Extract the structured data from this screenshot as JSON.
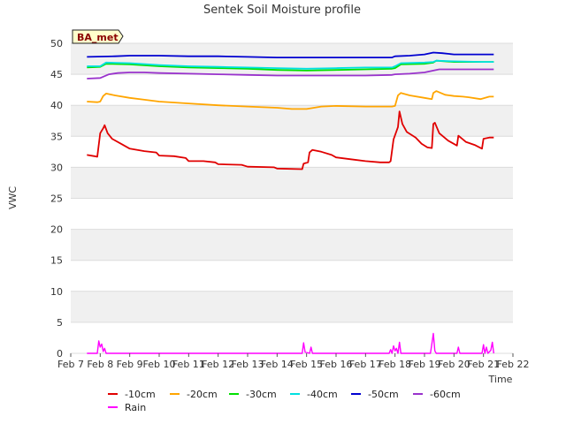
{
  "chart_data": {
    "type": "line",
    "title": "Sentek Soil Moisture profile",
    "xlabel": "Time",
    "ylabel": "VWC",
    "site_label": "BA_met",
    "xlim": [
      7,
      22
    ],
    "ylim": [
      0,
      50
    ],
    "x_ticks": [
      {
        "value": 7,
        "label": "Feb 7"
      },
      {
        "value": 8,
        "label": "Feb 8"
      },
      {
        "value": 9,
        "label": "Feb 9"
      },
      {
        "value": 10,
        "label": "Feb 10"
      },
      {
        "value": 11,
        "label": "Feb 11"
      },
      {
        "value": 12,
        "label": "Feb 12"
      },
      {
        "value": 13,
        "label": "Feb 13"
      },
      {
        "value": 14,
        "label": "Feb 14"
      },
      {
        "value": 15,
        "label": "Feb 15"
      },
      {
        "value": 16,
        "label": "Feb 16"
      },
      {
        "value": 17,
        "label": "Feb 17"
      },
      {
        "value": 18,
        "label": "Feb 18"
      },
      {
        "value": 19,
        "label": "Feb 19"
      },
      {
        "value": 20,
        "label": "Feb 20"
      },
      {
        "value": 21,
        "label": "Feb 21"
      },
      {
        "value": 22,
        "label": "Feb 22"
      }
    ],
    "y_ticks": [
      0,
      5,
      10,
      15,
      20,
      25,
      30,
      35,
      40,
      45,
      50
    ],
    "series": [
      {
        "name": "-10cm",
        "color": "#e00000",
        "points": [
          [
            7.55,
            32.0
          ],
          [
            7.8,
            31.8
          ],
          [
            7.9,
            31.7
          ],
          [
            8.0,
            35.5
          ],
          [
            8.1,
            36.3
          ],
          [
            8.15,
            36.8
          ],
          [
            8.25,
            35.5
          ],
          [
            8.4,
            34.6
          ],
          [
            8.7,
            33.8
          ],
          [
            9.0,
            33.0
          ],
          [
            9.5,
            32.6
          ],
          [
            9.9,
            32.4
          ],
          [
            10.0,
            31.9
          ],
          [
            10.5,
            31.8
          ],
          [
            10.9,
            31.5
          ],
          [
            11.0,
            31.0
          ],
          [
            11.5,
            31.0
          ],
          [
            11.9,
            30.8
          ],
          [
            12.0,
            30.5
          ],
          [
            12.8,
            30.4
          ],
          [
            13.0,
            30.1
          ],
          [
            13.9,
            30.0
          ],
          [
            14.0,
            29.8
          ],
          [
            14.85,
            29.7
          ],
          [
            14.9,
            30.6
          ],
          [
            15.05,
            30.8
          ],
          [
            15.1,
            32.4
          ],
          [
            15.2,
            32.8
          ],
          [
            15.5,
            32.5
          ],
          [
            15.85,
            32.0
          ],
          [
            16.0,
            31.6
          ],
          [
            16.5,
            31.3
          ],
          [
            17.0,
            31.0
          ],
          [
            17.5,
            30.8
          ],
          [
            17.8,
            30.8
          ],
          [
            17.85,
            31.0
          ],
          [
            17.95,
            34.5
          ],
          [
            18.1,
            36.5
          ],
          [
            18.15,
            39.0
          ],
          [
            18.25,
            37.0
          ],
          [
            18.4,
            35.7
          ],
          [
            18.7,
            34.8
          ],
          [
            18.9,
            33.8
          ],
          [
            19.1,
            33.2
          ],
          [
            19.25,
            33.1
          ],
          [
            19.3,
            37.0
          ],
          [
            19.35,
            37.2
          ],
          [
            19.5,
            35.5
          ],
          [
            19.8,
            34.3
          ],
          [
            20.1,
            33.5
          ],
          [
            20.15,
            35.1
          ],
          [
            20.4,
            34.1
          ],
          [
            20.7,
            33.6
          ],
          [
            20.95,
            33.0
          ],
          [
            21.0,
            34.6
          ],
          [
            21.2,
            34.8
          ],
          [
            21.35,
            34.8
          ]
        ]
      },
      {
        "name": "-20cm",
        "color": "#ffa500",
        "points": [
          [
            7.55,
            40.6
          ],
          [
            7.9,
            40.5
          ],
          [
            8.0,
            40.6
          ],
          [
            8.1,
            41.5
          ],
          [
            8.2,
            41.9
          ],
          [
            8.5,
            41.6
          ],
          [
            9.0,
            41.2
          ],
          [
            9.5,
            40.9
          ],
          [
            10.0,
            40.6
          ],
          [
            11.0,
            40.3
          ],
          [
            12.0,
            40.0
          ],
          [
            13.0,
            39.8
          ],
          [
            14.0,
            39.6
          ],
          [
            14.5,
            39.4
          ],
          [
            15.0,
            39.4
          ],
          [
            15.5,
            39.8
          ],
          [
            16.0,
            39.9
          ],
          [
            17.0,
            39.8
          ],
          [
            17.9,
            39.8
          ],
          [
            18.0,
            39.9
          ],
          [
            18.1,
            41.6
          ],
          [
            18.2,
            42.0
          ],
          [
            18.5,
            41.6
          ],
          [
            19.0,
            41.2
          ],
          [
            19.25,
            41.0
          ],
          [
            19.3,
            42.0
          ],
          [
            19.4,
            42.3
          ],
          [
            19.7,
            41.7
          ],
          [
            20.0,
            41.5
          ],
          [
            20.3,
            41.4
          ],
          [
            20.5,
            41.3
          ],
          [
            20.9,
            41.0
          ],
          [
            21.2,
            41.4
          ],
          [
            21.35,
            41.4
          ]
        ]
      },
      {
        "name": "-30cm",
        "color": "#00e000",
        "points": [
          [
            7.55,
            46.1
          ],
          [
            8.0,
            46.2
          ],
          [
            8.2,
            46.7
          ],
          [
            9.0,
            46.6
          ],
          [
            10.0,
            46.3
          ],
          [
            11.0,
            46.1
          ],
          [
            12.0,
            46.0
          ],
          [
            13.0,
            45.9
          ],
          [
            14.0,
            45.7
          ],
          [
            15.0,
            45.6
          ],
          [
            16.0,
            45.7
          ],
          [
            17.0,
            45.8
          ],
          [
            17.9,
            45.9
          ],
          [
            18.0,
            46.0
          ],
          [
            18.2,
            46.6
          ],
          [
            19.0,
            46.7
          ],
          [
            19.3,
            46.9
          ],
          [
            19.4,
            47.2
          ],
          [
            20.0,
            47.0
          ],
          [
            21.0,
            47.0
          ],
          [
            21.35,
            47.0
          ]
        ]
      },
      {
        "name": "-40cm",
        "color": "#00e0e0",
        "points": [
          [
            7.55,
            46.3
          ],
          [
            8.0,
            46.3
          ],
          [
            8.2,
            46.9
          ],
          [
            9.0,
            46.8
          ],
          [
            10.0,
            46.5
          ],
          [
            11.0,
            46.3
          ],
          [
            12.0,
            46.2
          ],
          [
            13.0,
            46.1
          ],
          [
            14.0,
            46.0
          ],
          [
            15.0,
            45.9
          ],
          [
            16.0,
            46.0
          ],
          [
            17.0,
            46.1
          ],
          [
            17.9,
            46.1
          ],
          [
            18.0,
            46.3
          ],
          [
            18.2,
            46.8
          ],
          [
            19.0,
            46.9
          ],
          [
            19.3,
            47.0
          ],
          [
            19.4,
            47.2
          ],
          [
            20.0,
            47.1
          ],
          [
            21.0,
            47.0
          ],
          [
            21.35,
            47.0
          ]
        ]
      },
      {
        "name": "-50cm",
        "color": "#0000d0",
        "points": [
          [
            7.55,
            47.8
          ],
          [
            8.5,
            47.9
          ],
          [
            9.0,
            48.0
          ],
          [
            10.0,
            48.0
          ],
          [
            11.0,
            47.9
          ],
          [
            12.0,
            47.9
          ],
          [
            13.0,
            47.8
          ],
          [
            14.0,
            47.7
          ],
          [
            15.0,
            47.7
          ],
          [
            16.0,
            47.7
          ],
          [
            17.0,
            47.7
          ],
          [
            17.9,
            47.7
          ],
          [
            18.0,
            47.9
          ],
          [
            18.5,
            48.0
          ],
          [
            19.0,
            48.2
          ],
          [
            19.3,
            48.5
          ],
          [
            19.6,
            48.4
          ],
          [
            20.0,
            48.2
          ],
          [
            21.0,
            48.2
          ],
          [
            21.35,
            48.2
          ]
        ]
      },
      {
        "name": "-60cm",
        "color": "#9932cc",
        "points": [
          [
            7.55,
            44.3
          ],
          [
            8.0,
            44.4
          ],
          [
            8.3,
            45.0
          ],
          [
            8.6,
            45.2
          ],
          [
            9.0,
            45.3
          ],
          [
            9.5,
            45.3
          ],
          [
            10.0,
            45.2
          ],
          [
            11.0,
            45.1
          ],
          [
            12.0,
            45.0
          ],
          [
            13.0,
            44.9
          ],
          [
            14.0,
            44.8
          ],
          [
            15.0,
            44.8
          ],
          [
            16.0,
            44.8
          ],
          [
            17.0,
            44.8
          ],
          [
            17.9,
            44.9
          ],
          [
            18.0,
            45.0
          ],
          [
            18.5,
            45.1
          ],
          [
            19.0,
            45.3
          ],
          [
            19.3,
            45.6
          ],
          [
            19.5,
            45.8
          ],
          [
            20.0,
            45.8
          ],
          [
            21.0,
            45.8
          ],
          [
            21.35,
            45.8
          ]
        ]
      },
      {
        "name": "Rain",
        "color": "#ff00ff",
        "points": [
          [
            7.55,
            0
          ],
          [
            7.9,
            0
          ],
          [
            7.95,
            2.0
          ],
          [
            8.0,
            1.0
          ],
          [
            8.05,
            1.5
          ],
          [
            8.1,
            0.3
          ],
          [
            8.15,
            0.8
          ],
          [
            8.2,
            0
          ],
          [
            14.85,
            0
          ],
          [
            14.9,
            1.7
          ],
          [
            14.95,
            0.2
          ],
          [
            15.1,
            0
          ],
          [
            15.15,
            1.0
          ],
          [
            15.2,
            0
          ],
          [
            17.8,
            0
          ],
          [
            17.85,
            0.6
          ],
          [
            17.9,
            0
          ],
          [
            17.95,
            1.2
          ],
          [
            18.0,
            0.4
          ],
          [
            18.05,
            0.8
          ],
          [
            18.1,
            0
          ],
          [
            18.15,
            1.8
          ],
          [
            18.2,
            0
          ],
          [
            19.2,
            0
          ],
          [
            19.25,
            1.5
          ],
          [
            19.3,
            3.2
          ],
          [
            19.35,
            0.4
          ],
          [
            19.4,
            0
          ],
          [
            20.1,
            0
          ],
          [
            20.15,
            1.0
          ],
          [
            20.2,
            0
          ],
          [
            20.95,
            0
          ],
          [
            21.0,
            1.4
          ],
          [
            21.05,
            0
          ],
          [
            21.1,
            1.0
          ],
          [
            21.15,
            0
          ],
          [
            21.25,
            0.5
          ],
          [
            21.3,
            1.8
          ],
          [
            21.35,
            0
          ]
        ]
      }
    ],
    "legend": {
      "position": "bottom"
    }
  }
}
